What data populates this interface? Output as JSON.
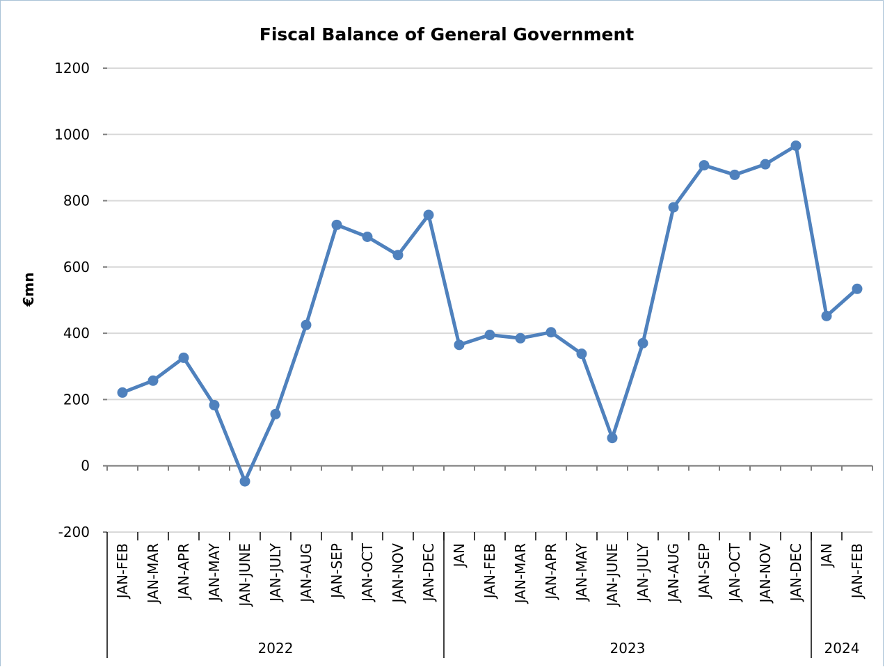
{
  "chart_data": {
    "type": "line",
    "title": "Fiscal Balance of General Government",
    "xlabel": "",
    "ylabel": "€mn",
    "ylim": [
      -200,
      1200
    ],
    "yticks": [
      1200,
      1000,
      800,
      600,
      400,
      200,
      0,
      -200
    ],
    "grid": true,
    "legend": "none",
    "color": "#4f81bd",
    "groups": [
      {
        "label": "2022",
        "start": 0,
        "count": 11
      },
      {
        "label": "2023",
        "start": 11,
        "count": 12
      },
      {
        "label": "2024",
        "start": 23,
        "count": 2
      }
    ],
    "categories": [
      "JAN-FEB",
      "JAN-MAR",
      "JAN-APR",
      "JAN-MAY",
      "JAN-JUNE",
      "JAN-JULY",
      "JAN-AUG",
      "JAN-SEP",
      "JAN-OCT",
      "JAN-NOV",
      "JAN-DEC",
      "JAN",
      "JAN-FEB",
      "JAN-MAR",
      "JAN-APR",
      "JAN-MAY",
      "JAN-JUNE",
      "JAN-JULY",
      "JAN-AUG",
      "JAN-SEP",
      "JAN-OCT",
      "JAN-NOV",
      "JAN-DEC",
      "JAN",
      "JAN-FEB"
    ],
    "values": [
      221,
      257,
      326,
      183,
      -47,
      156,
      425,
      727,
      691,
      636,
      757,
      365,
      395,
      385,
      403,
      338,
      84,
      370,
      780,
      907,
      878,
      910,
      966,
      452,
      534
    ]
  }
}
